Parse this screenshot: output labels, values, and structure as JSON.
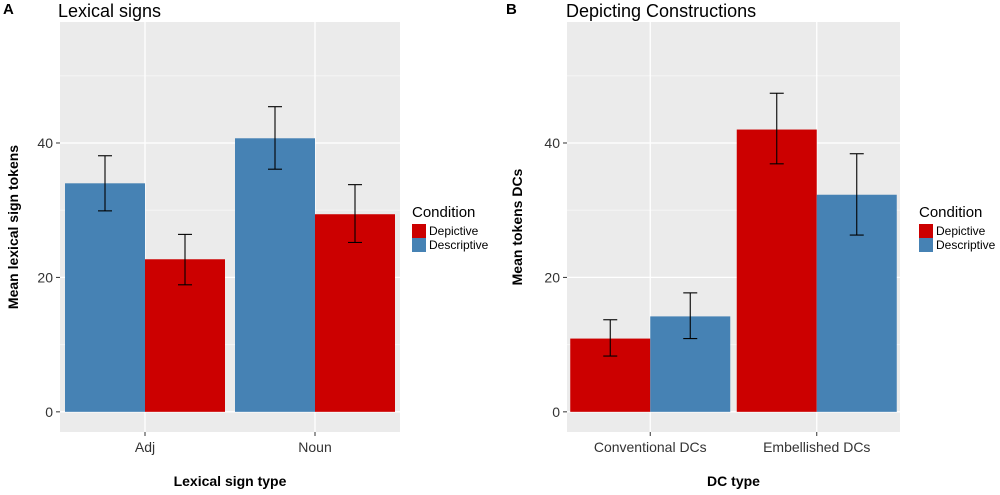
{
  "colors": {
    "panel_bg": "#EBEBEB",
    "grid_major": "#FFFFFF",
    "grid_minor": "#F5F5F5",
    "depictive": "#CC0000",
    "descriptive": "#4682B4",
    "errorbar": "#000000"
  },
  "chart_data": [
    {
      "type": "bar",
      "panel_letter": "A",
      "title": "Lexical signs",
      "xlabel": "Lexical sign type",
      "ylabel": "Mean lexical sign tokens",
      "ylim": [
        -3,
        58
      ],
      "yticks": [
        0,
        20,
        40
      ],
      "categories": [
        "Adj",
        "Noun"
      ],
      "series": [
        {
          "name": "Descriptive",
          "color_key": "descriptive",
          "values": [
            34.0,
            40.7
          ],
          "err_low": [
            29.9,
            36.1
          ],
          "err_high": [
            38.1,
            45.4
          ]
        },
        {
          "name": "Depictive",
          "color_key": "depictive",
          "values": [
            22.7,
            29.4
          ],
          "err_low": [
            18.9,
            25.2
          ],
          "err_high": [
            26.4,
            33.8
          ]
        }
      ],
      "legend": {
        "title": "Condition",
        "entries": [
          "Depictive",
          "Descriptive"
        ],
        "placement": "right"
      }
    },
    {
      "type": "bar",
      "panel_letter": "B",
      "title": "Depicting Constructions",
      "xlabel": "DC type",
      "ylabel": "Mean tokens DCs",
      "ylim": [
        -3,
        58
      ],
      "yticks": [
        0,
        20,
        40
      ],
      "categories": [
        "Conventional DCs",
        "Embellished DCs"
      ],
      "series": [
        {
          "name": "Depictive",
          "color_key": "depictive",
          "values": [
            10.9,
            42.0
          ],
          "err_low": [
            8.3,
            36.9
          ],
          "err_high": [
            13.7,
            47.4
          ]
        },
        {
          "name": "Descriptive",
          "color_key": "descriptive",
          "values": [
            14.2,
            32.3
          ],
          "err_low": [
            10.9,
            26.3
          ],
          "err_high": [
            17.7,
            38.4
          ]
        }
      ],
      "legend": {
        "title": "Condition",
        "entries": [
          "Depictive",
          "Descriptive"
        ],
        "placement": "right"
      }
    }
  ]
}
